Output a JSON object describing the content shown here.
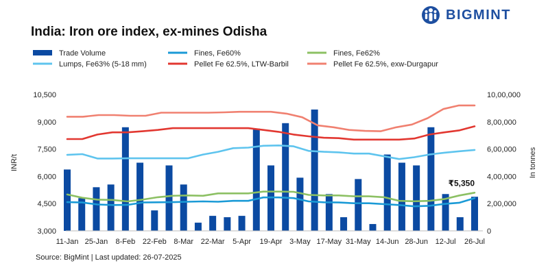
{
  "brand": {
    "name": "BIGMINT",
    "color": "#1e4fa0"
  },
  "chart_data": {
    "type": "bar+line",
    "title": "India: Iron ore index, ex-mines Odisha",
    "source": "Source: BigMint | Last updated: 26-07-2025",
    "x_labels": [
      "11-Jan",
      "25-Jan",
      "8-Feb",
      "22-Feb",
      "8-Mar",
      "22-Mar",
      "5-Apr",
      "19-Apr",
      "3-May",
      "17-May",
      "31-May",
      "14-Jun",
      "28-Jun",
      "12-Jul",
      "26-Jul"
    ],
    "y_left": {
      "label": "INR/t",
      "min": 3000,
      "max": 10500,
      "ticks": [
        "3,000",
        "4,500",
        "6,000",
        "7,500",
        "9,000",
        "10,500"
      ]
    },
    "y_right": {
      "label": "In tonnes",
      "min": 0,
      "max": 1000000,
      "ticks": [
        "0",
        "2,00,000",
        "4,00,000",
        "6,00,000",
        "8,00,000",
        "10,00,000"
      ]
    },
    "bars": {
      "name": "Trade Volume",
      "color": "#0b4aa2",
      "axis": "right",
      "values": [
        450000,
        240000,
        320000,
        340000,
        760000,
        500000,
        150000,
        480000,
        340000,
        60000,
        110000,
        100000,
        110000,
        750000,
        480000,
        790000,
        390000,
        890000,
        270000,
        100000,
        380000,
        50000,
        560000,
        500000,
        480000,
        760000,
        270000,
        100000,
        250000
      ]
    },
    "series": [
      {
        "name": "Fines, Fe60%",
        "color": "#1a9ad6",
        "values": [
          4580,
          4560,
          4450,
          4420,
          4430,
          4560,
          4570,
          4580,
          4600,
          4620,
          4600,
          4650,
          4650,
          4840,
          4840,
          4800,
          4620,
          4570,
          4560,
          4520,
          4520,
          4470,
          4420,
          4350,
          4380,
          4480,
          4550,
          4800
        ]
      },
      {
        "name": "Fines, Fe62%",
        "color": "#8cc063",
        "values": [
          5000,
          4820,
          4720,
          4700,
          4620,
          4720,
          4850,
          4930,
          4950,
          4930,
          5060,
          5060,
          5060,
          5160,
          5160,
          5150,
          4980,
          4950,
          4950,
          4900,
          4900,
          4850,
          4650,
          4630,
          4650,
          4750,
          4950,
          5100
        ]
      },
      {
        "name": "Lumps, Fe63% (5-18 mm)",
        "color": "#5ec4ee",
        "values": [
          7180,
          7220,
          6980,
          6980,
          6990,
          6990,
          6990,
          6990,
          6990,
          7200,
          7350,
          7550,
          7580,
          7680,
          7700,
          7650,
          7400,
          7350,
          7320,
          7250,
          7250,
          7100,
          6950,
          7050,
          7200,
          7300,
          7380,
          7450
        ]
      },
      {
        "name": "Pellet Fe 62.5%, LTW-Barbil",
        "color": "#e23730",
        "values": [
          8050,
          8050,
          8300,
          8420,
          8420,
          8480,
          8550,
          8650,
          8650,
          8650,
          8650,
          8650,
          8650,
          8550,
          8450,
          8300,
          8200,
          8120,
          8100,
          8020,
          8020,
          8020,
          8020,
          8080,
          8300,
          8420,
          8530,
          8750
        ]
      },
      {
        "name": "Pellet Fe 62.5%, exw-Durgapur",
        "color": "#f08070",
        "values": [
          9280,
          9280,
          9370,
          9370,
          9330,
          9330,
          9500,
          9500,
          9500,
          9500,
          9520,
          9550,
          9550,
          9550,
          9450,
          9250,
          8800,
          8700,
          8550,
          8500,
          8480,
          8700,
          8850,
          9200,
          9700,
          9900,
          9900
        ]
      }
    ],
    "annotation": {
      "text": "₹5,350",
      "color": "#111111"
    },
    "legend": {
      "placement": "top, three columns",
      "entries": [
        "Trade Volume",
        "Fines, Fe60%",
        "Fines, Fe62%",
        "Lumps, Fe63% (5-18 mm)",
        "Pellet Fe 62.5%, LTW-Barbil",
        "Pellet Fe 62.5%, exw-Durgapur"
      ]
    }
  }
}
